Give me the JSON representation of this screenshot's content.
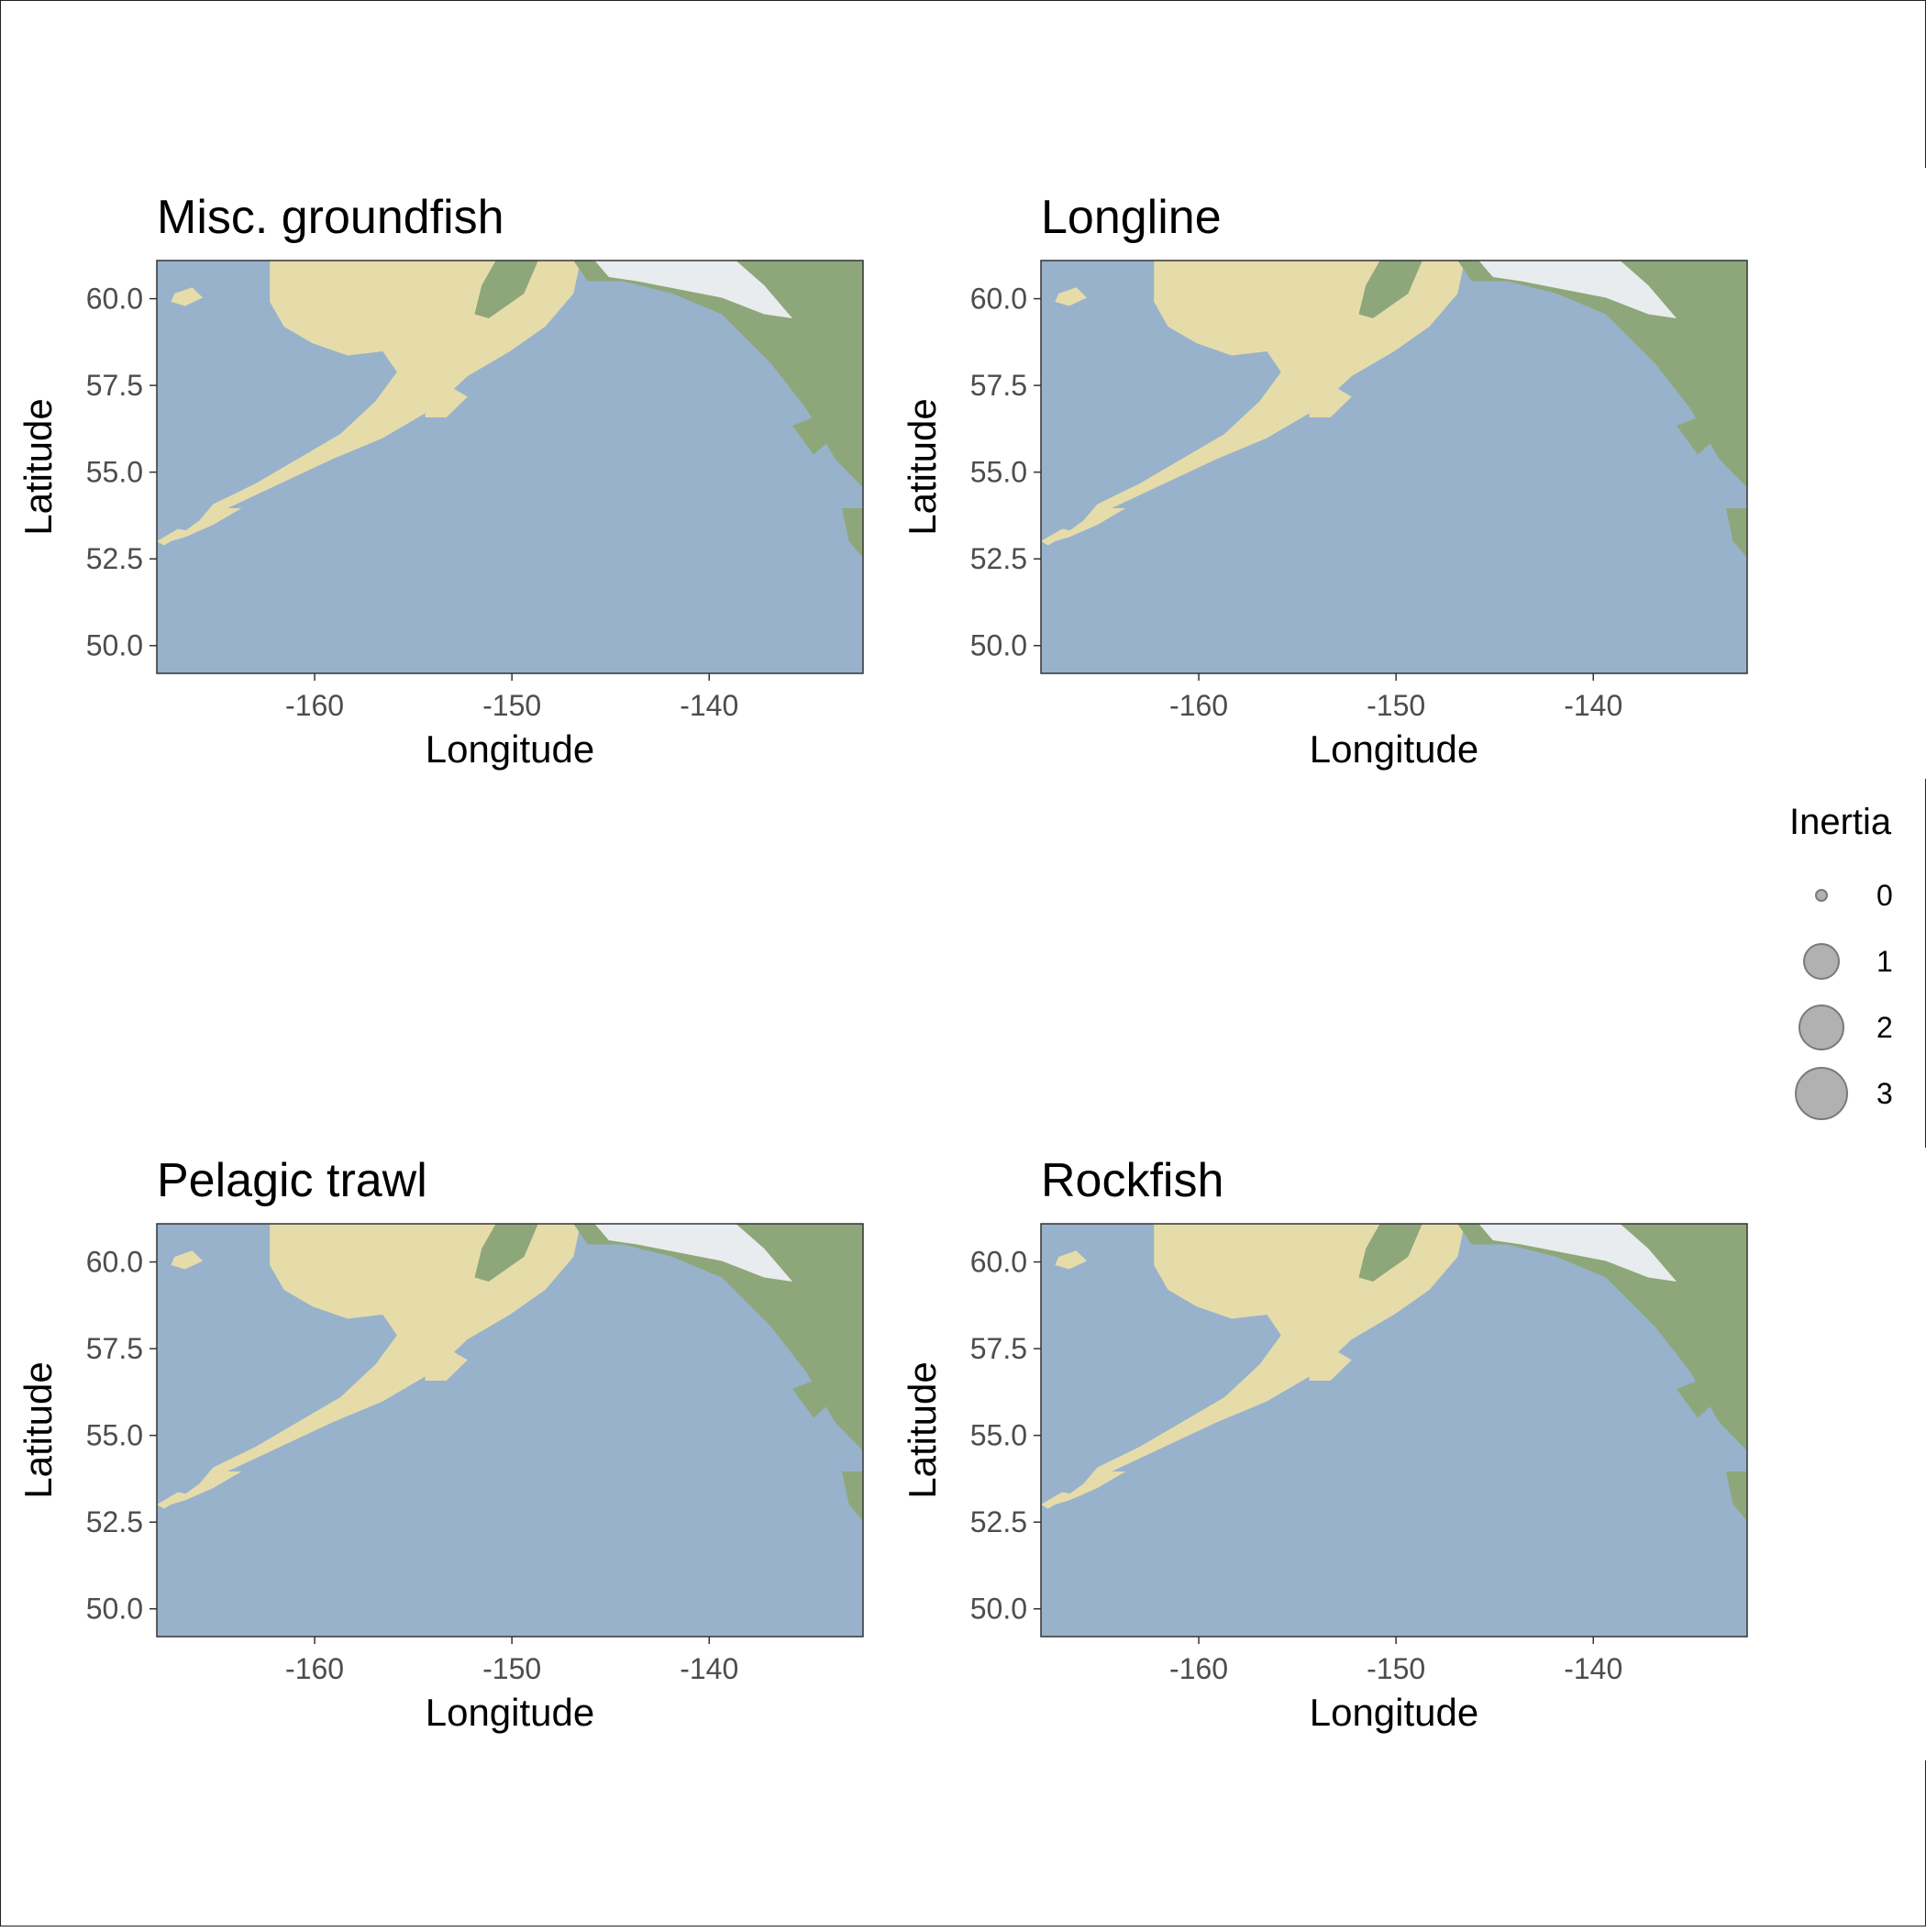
{
  "figure": {
    "panels": [
      {
        "title": "Misc. groundfish",
        "xlabel": "Longitude",
        "ylabel": "Latitude"
      },
      {
        "title": "Longline",
        "xlabel": "Longitude",
        "ylabel": "Latitude"
      },
      {
        "title": "Pelagic trawl",
        "xlabel": "Longitude",
        "ylabel": "Latitude"
      },
      {
        "title": "Rockfish",
        "xlabel": "Longitude",
        "ylabel": "Latitude"
      }
    ],
    "x_ticks": [
      -160,
      -150,
      -140
    ],
    "x_tick_labels": [
      "-160",
      "-150",
      "-140"
    ],
    "y_ticks": [
      50.0,
      52.5,
      55.0,
      57.5,
      60.0
    ],
    "y_tick_labels": [
      "50.0",
      "52.5",
      "55.0",
      "57.5",
      "60.0"
    ],
    "xlim": [
      -168,
      -132.2
    ],
    "ylim": [
      49.2,
      61.1
    ],
    "colors": {
      "ocean": "#98b2cb",
      "land": "#e6dcaa",
      "land_green": "#8ea77a",
      "snow": "#e9ecee",
      "panel_border": "#333333",
      "tick_text": "#4d4d4d",
      "legend_fill": "#9e9e9e"
    },
    "legend": {
      "title": "Inertia",
      "entries": [
        {
          "label": "0",
          "value": 0
        },
        {
          "label": "1",
          "value": 1
        },
        {
          "label": "2",
          "value": 2
        },
        {
          "label": "3",
          "value": 3
        }
      ]
    }
  }
}
